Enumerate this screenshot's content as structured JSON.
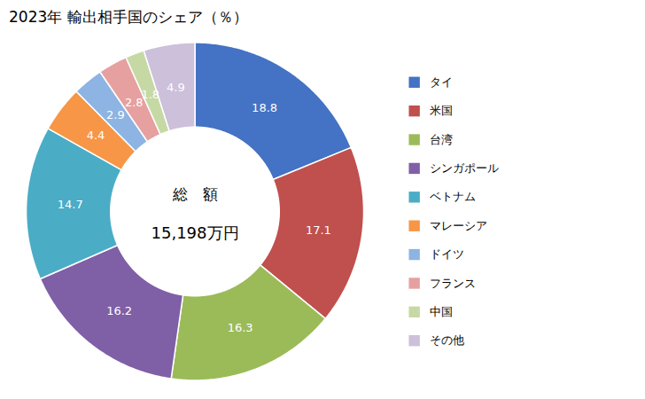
{
  "chart_data": {
    "type": "donut",
    "title": "2023年 輸出相手国のシェア（％）",
    "categories": [
      "タイ",
      "米国",
      "台湾",
      "シンガポール",
      "ベトナム",
      "マレーシア",
      "ドイツ",
      "フランス",
      "中国",
      "その他"
    ],
    "values": [
      18.8,
      17.1,
      16.3,
      16.2,
      14.7,
      4.4,
      2.9,
      2.8,
      1.8,
      4.9
    ],
    "colors": [
      "#4472C4",
      "#C0504D",
      "#9BBB59",
      "#7F5FA6",
      "#4BACC6",
      "#F79646",
      "#8DB4E2",
      "#E6A0A0",
      "#C6D9A4",
      "#CCC0DA"
    ],
    "data_labels": true,
    "legend": "right",
    "annotations": [
      "総　額",
      "15,198万円"
    ]
  }
}
